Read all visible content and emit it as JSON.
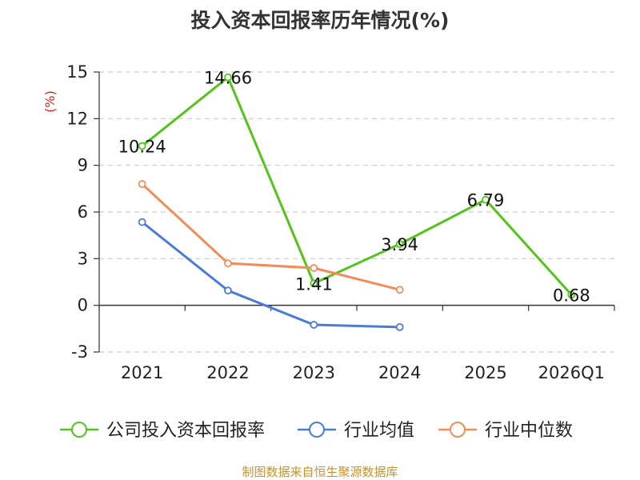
{
  "chart_data": {
    "type": "line",
    "title": "投入资本回报率历年情况(%)",
    "ylabel": "(%)",
    "categories": [
      "2021",
      "2022",
      "2023",
      "2024",
      "2025",
      "2026Q1"
    ],
    "ylim": [
      -3,
      15
    ],
    "yticks": [
      -3,
      0,
      3,
      6,
      9,
      12,
      15
    ],
    "grid": true,
    "legend_position": "bottom",
    "series": [
      {
        "name": "公司投入资本回报率",
        "color": "#52c41a",
        "values": [
          10.24,
          14.66,
          1.41,
          3.94,
          6.79,
          0.68
        ],
        "labels": [
          "10.24",
          "14.66",
          "1.41",
          "3.94",
          "6.79",
          "0.68"
        ]
      },
      {
        "name": "行业均值",
        "color": "#4a7bd8",
        "values": [
          5.35,
          0.95,
          -1.25,
          -1.4,
          null,
          null
        ]
      },
      {
        "name": "行业中位数",
        "color": "#f28c58",
        "values": [
          7.8,
          2.7,
          2.4,
          1.0,
          null,
          null
        ]
      }
    ]
  },
  "source": "制图数据来自恒生聚源数据库"
}
